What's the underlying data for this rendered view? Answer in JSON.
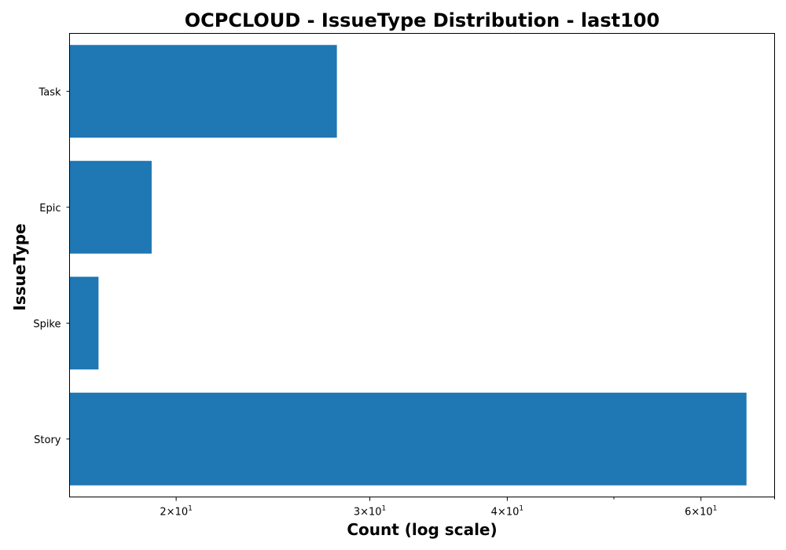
{
  "chart_data": {
    "type": "bar",
    "orientation": "horizontal",
    "title": "OCPCLOUD - IssueType Distribution - last100",
    "xlabel": "Count (log scale)",
    "ylabel": "IssueType",
    "x_scale": "log",
    "xlim": [
      16,
      70
    ],
    "categories": [
      "Task",
      "Epic",
      "Spike",
      "Story"
    ],
    "values": [
      28,
      19,
      17,
      66
    ],
    "major_ticks": [
      {
        "value": 20,
        "mantissa": "2",
        "base": "10",
        "exponent": "1"
      },
      {
        "value": 30,
        "mantissa": "3",
        "base": "10",
        "exponent": "1"
      },
      {
        "value": 40,
        "mantissa": "4",
        "base": "10",
        "exponent": "1"
      },
      {
        "value": 60,
        "mantissa": "6",
        "base": "10",
        "exponent": "1"
      }
    ],
    "minor_ticks": [
      50,
      70
    ],
    "bar_color": "#1f77b4",
    "grid": false,
    "legend": "none"
  }
}
